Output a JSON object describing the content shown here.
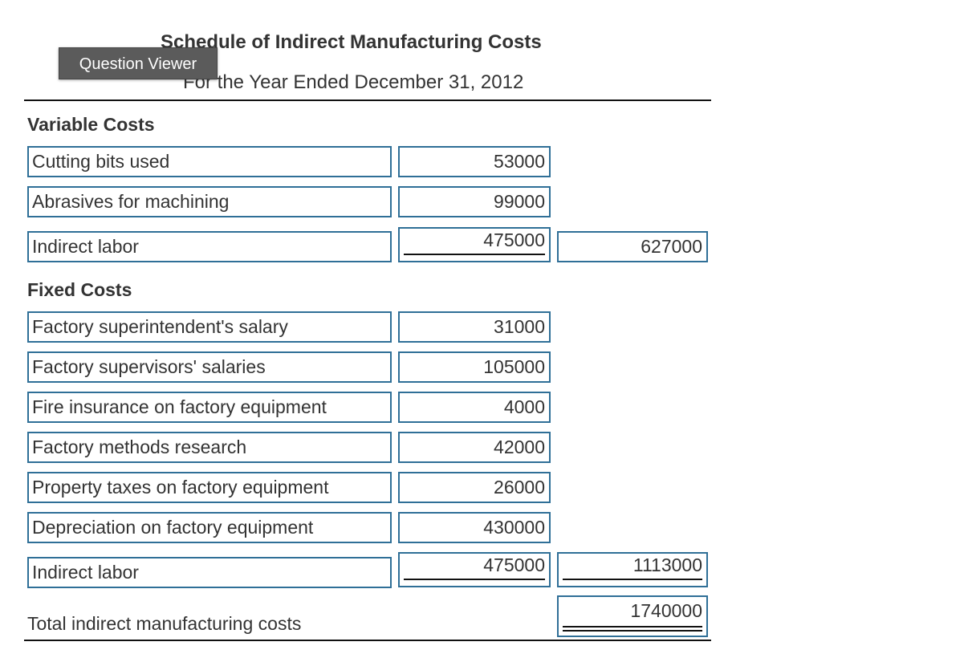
{
  "schedule": {
    "title": "Schedule of Indirect Manufacturing Costs",
    "subtitle": "For the Year Ended December 31, 2012",
    "tooltip": "Question Viewer"
  },
  "variable_costs": {
    "heading": "Variable Costs",
    "rows": [
      {
        "label": "Cutting bits used",
        "amount": "53000"
      },
      {
        "label": "Abrasives for machining",
        "amount": "99000"
      },
      {
        "label": "Indirect labor",
        "amount": "475000",
        "subtotal": "627000"
      }
    ]
  },
  "fixed_costs": {
    "heading": "Fixed Costs",
    "rows": [
      {
        "label": "Factory superintendent's salary",
        "amount": "31000"
      },
      {
        "label": "Factory supervisors' salaries",
        "amount": "105000"
      },
      {
        "label": "Fire insurance on factory equipment",
        "amount": "4000"
      },
      {
        "label": "Factory methods research",
        "amount": "42000"
      },
      {
        "label": "Property taxes on factory equipment",
        "amount": "26000"
      },
      {
        "label": "Depreciation on factory equipment",
        "amount": "430000"
      },
      {
        "label": "Indirect labor",
        "amount": "475000",
        "subtotal": "1113000"
      }
    ]
  },
  "total": {
    "label": "Total indirect manufacturing costs",
    "amount": "1740000"
  }
}
